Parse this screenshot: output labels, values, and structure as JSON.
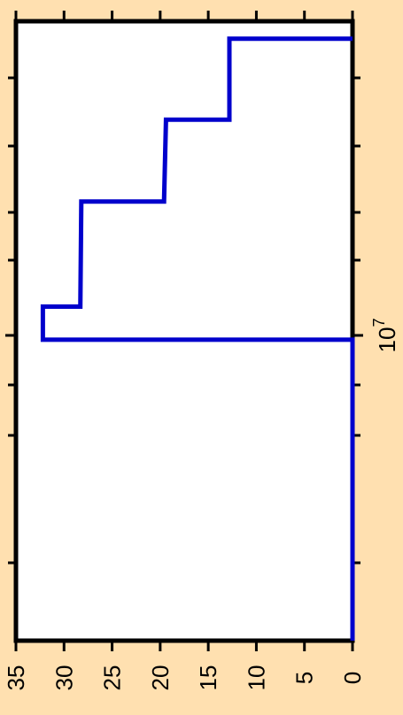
{
  "chart_data": {
    "type": "line",
    "orientation": "rotated-90-ccw",
    "title": "",
    "xlabel": "",
    "ylabel": "",
    "background_color": "#FFE0B0",
    "plot_background": "#FFFFFF",
    "series_color": "#0000CC",
    "grid": false,
    "y_ticks": [
      "0",
      "5",
      "10",
      "15",
      "20",
      "25",
      "30",
      "35"
    ],
    "y_tick_values": [
      0,
      5,
      10,
      15,
      20,
      25,
      30,
      35
    ],
    "ylim": [
      0,
      35
    ],
    "x_scale": "log",
    "x_tick_label_base": "10",
    "x_tick_label_exp": "7",
    "x_tick_label_value": 10000000,
    "series": [
      {
        "step": [
          {
            "x_index": 0.0,
            "y": 0
          },
          {
            "x_index": 7.73,
            "y": 0
          },
          {
            "x_index": 7.73,
            "y": 32.2
          },
          {
            "x_index": 8.58,
            "y": 32.2
          },
          {
            "x_index": 8.58,
            "y": 28.3
          },
          {
            "x_index": 11.28,
            "y": 28.2
          },
          {
            "x_index": 11.28,
            "y": 19.6
          },
          {
            "x_index": 13.38,
            "y": 19.4
          },
          {
            "x_index": 13.38,
            "y": 12.8
          },
          {
            "x_index": 15.46,
            "y": 12.8
          },
          {
            "x_index": 15.46,
            "y": 0
          }
        ]
      }
    ]
  }
}
